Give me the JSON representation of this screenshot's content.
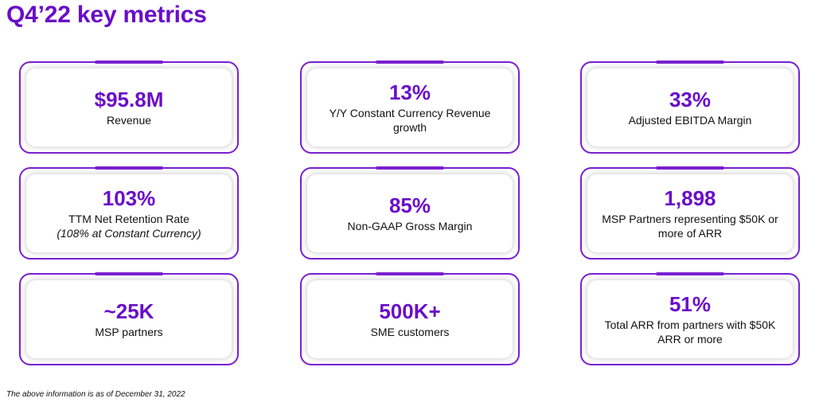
{
  "page": {
    "title": "Q4’22 key metrics",
    "footnote": "The above information is as of December 31, 2022",
    "accent_color": "#6a0dc9"
  },
  "metrics": [
    {
      "value": "$95.8M",
      "label": "Revenue"
    },
    {
      "value": "13%",
      "label": "Y/Y Constant Currency Revenue growth"
    },
    {
      "value": "33%",
      "label": "Adjusted EBITDA Margin"
    },
    {
      "value": "103%",
      "label": "TTM Net Retention Rate",
      "note": "(108% at Constant Currency)"
    },
    {
      "value": "85%",
      "label": "Non-GAAP Gross Margin"
    },
    {
      "value": "1,898",
      "label": "MSP Partners representing $50K or more of ARR"
    },
    {
      "value": "~25K",
      "label": "MSP partners"
    },
    {
      "value": "500K+",
      "label": "SME customers"
    },
    {
      "value": "51%",
      "label": "Total ARR from partners with $50K ARR or more"
    }
  ]
}
